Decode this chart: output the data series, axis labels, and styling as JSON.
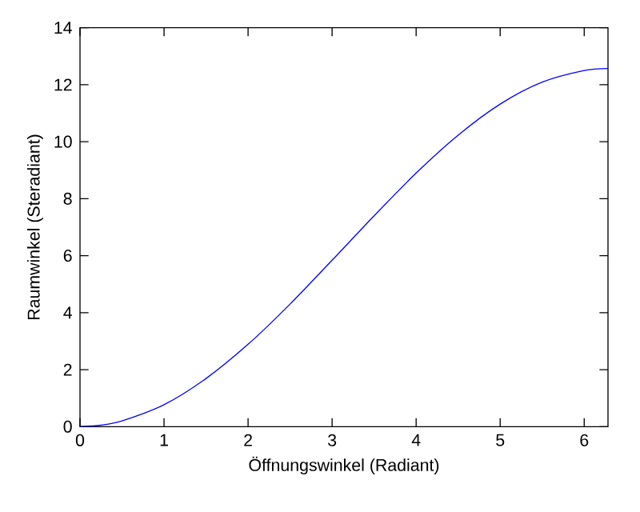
{
  "chart_data": {
    "type": "line",
    "xlabel": "Öffnungswinkel (Radiant)",
    "ylabel": "Raumwinkel (Steradiant)",
    "x": [
      0,
      0.25,
      0.5,
      1,
      1.5,
      2,
      2.5,
      3,
      3.5,
      4,
      4.5,
      5,
      5.5,
      6,
      6.283
    ],
    "series": [
      {
        "color": "#0000ff",
        "values": [
          0,
          0.05,
          0.2,
          0.77,
          1.69,
          2.89,
          4.3,
          5.84,
          7.4,
          8.9,
          10.23,
          11.32,
          12.09,
          12.5,
          12.57
        ]
      }
    ],
    "xlim": [
      0,
      6.283
    ],
    "ylim": [
      0,
      14
    ],
    "xticks": [
      0,
      1,
      2,
      3,
      4,
      5,
      6
    ],
    "yticks": [
      0,
      2,
      4,
      6,
      8,
      10,
      12,
      14
    ],
    "marker": "none",
    "line_style": "solid"
  }
}
